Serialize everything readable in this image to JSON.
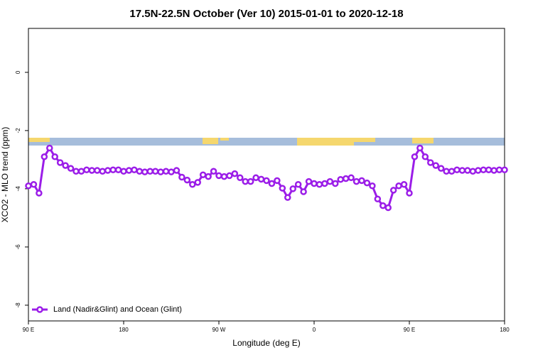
{
  "chart_data": {
    "type": "line",
    "title": "17.5N-22.5N October (Ver 10)   2015-01-01 to 2020-12-18",
    "x_label": "Longitude (deg E)",
    "y_label": "XCO2 - MLO trend (ppm)",
    "x": [
      90,
      95,
      100,
      105,
      110,
      115,
      120,
      125,
      130,
      135,
      140,
      145,
      150,
      155,
      160,
      165,
      170,
      175,
      180,
      185,
      190,
      195,
      200,
      205,
      210,
      215,
      220,
      225,
      230,
      235,
      240,
      245,
      250,
      255,
      260,
      265,
      270,
      275,
      280,
      285,
      290,
      295,
      300,
      305,
      310,
      315,
      320,
      325,
      330,
      335,
      340,
      345,
      350,
      355,
      360,
      365,
      370,
      375,
      380,
      385,
      390,
      395,
      400,
      405,
      410,
      415,
      420,
      425,
      430,
      435,
      440,
      445,
      450,
      455,
      460,
      465,
      470,
      475,
      480,
      485,
      490,
      495,
      500,
      505,
      510,
      515,
      520,
      525,
      530,
      535,
      540
    ],
    "series": [
      {
        "name": "Land (Nadir&Glint) and Ocean (Glint)",
        "color": "#9b1de8",
        "values": [
          -3.9,
          -3.85,
          -4.15,
          -2.9,
          -2.6,
          -2.9,
          -3.1,
          -3.2,
          -3.3,
          -3.4,
          -3.4,
          -3.35,
          -3.37,
          -3.37,
          -3.4,
          -3.37,
          -3.35,
          -3.35,
          -3.4,
          -3.37,
          -3.35,
          -3.4,
          -3.42,
          -3.4,
          -3.4,
          -3.42,
          -3.4,
          -3.42,
          -3.37,
          -3.6,
          -3.7,
          -3.85,
          -3.78,
          -3.52,
          -3.58,
          -3.4,
          -3.55,
          -3.58,
          -3.55,
          -3.48,
          -3.62,
          -3.75,
          -3.75,
          -3.62,
          -3.67,
          -3.72,
          -3.82,
          -3.72,
          -3.98,
          -4.3,
          -4.0,
          -3.85,
          -4.1,
          -3.75,
          -3.82,
          -3.85,
          -3.82,
          -3.75,
          -3.82,
          -3.68,
          -3.65,
          -3.62,
          -3.75,
          -3.72,
          -3.8,
          -3.9,
          -4.35,
          -4.58,
          -4.65,
          -4.05,
          -3.9,
          -3.85,
          -4.15,
          -2.9,
          -2.6,
          -2.9,
          -3.1,
          -3.2,
          -3.3,
          -3.4,
          -3.4,
          -3.35,
          -3.37,
          -3.37,
          -3.4,
          -3.37,
          -3.35,
          -3.35,
          -3.37,
          -3.35,
          -3.35
        ]
      }
    ],
    "xlim": [
      90,
      540
    ],
    "xticks": [
      {
        "value": 90,
        "label": "90 E"
      },
      180,
      {
        "value": 270,
        "label": "90 W"
      },
      {
        "value": 360,
        "label": "0"
      },
      {
        "value": 450,
        "label": "90 E"
      },
      {
        "value": 540,
        "label": "180"
      }
    ],
    "ylim": [
      -8.54,
      1.51
    ],
    "yticks": [
      0,
      -2,
      -4,
      -6,
      -8
    ],
    "legend": "bottom-left"
  }
}
